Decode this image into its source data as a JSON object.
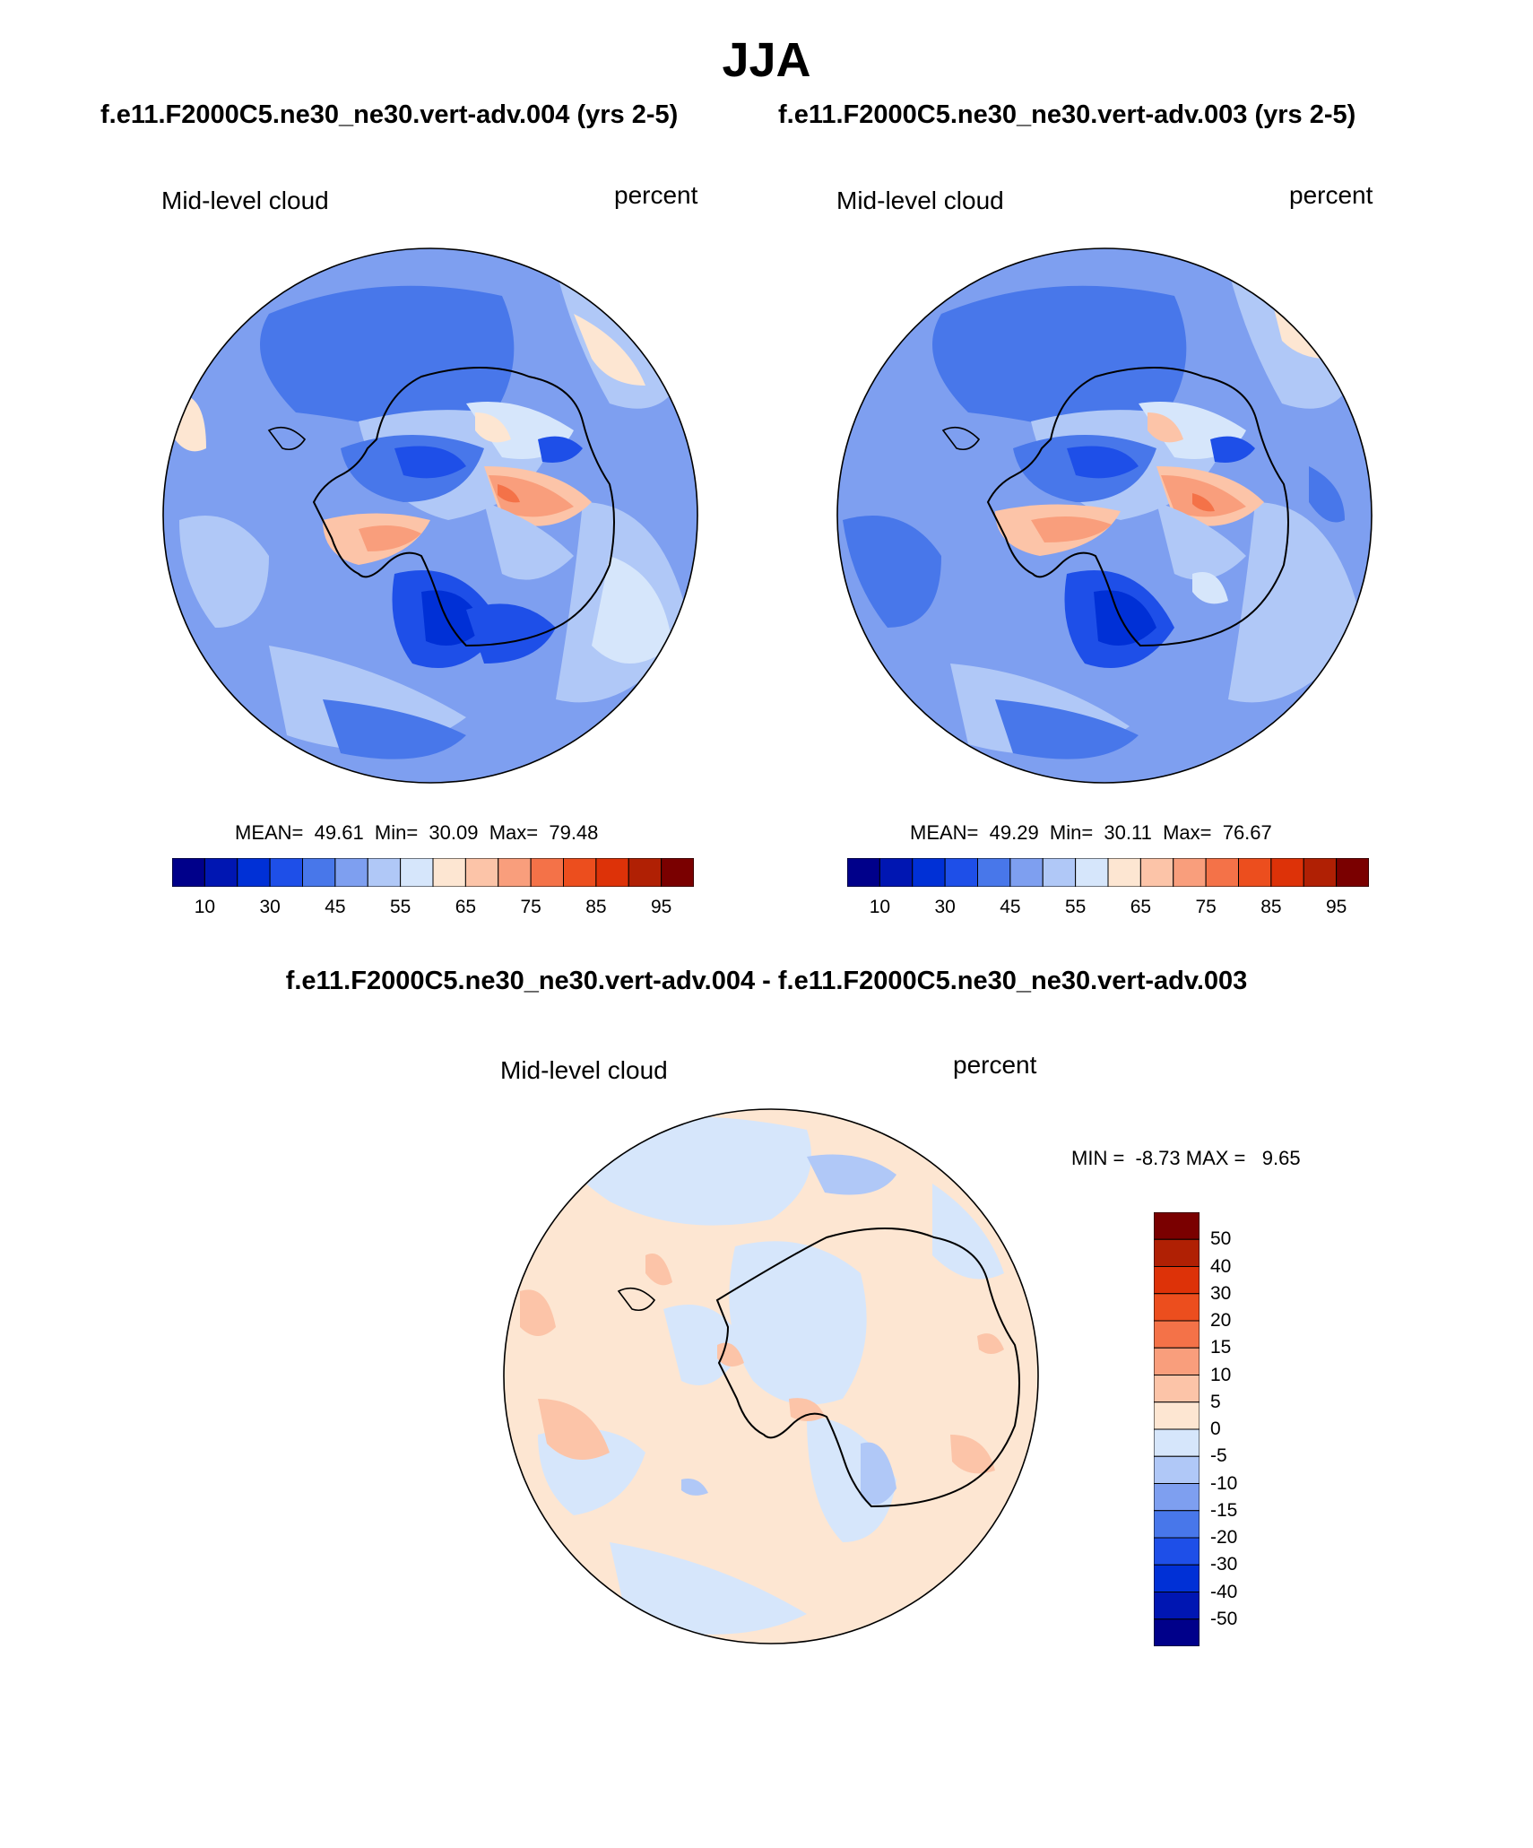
{
  "title": "JJA",
  "panels": [
    {
      "case_title": "f.e11.F2000C5.ne30_ne30.vert-adv.004 (yrs 2-5)",
      "left_label": "Mid-level cloud",
      "right_label": "percent",
      "stats": "MEAN=  49.61  Min=  30.09  Max=  79.48"
    },
    {
      "case_title": "f.e11.F2000C5.ne30_ne30.vert-adv.003 (yrs 2-5)",
      "left_label": "Mid-level cloud",
      "right_label": "percent",
      "stats": "MEAN=  49.29  Min=  30.11  Max=  76.67"
    }
  ],
  "diff": {
    "title": "f.e11.F2000C5.ne30_ne30.vert-adv.004 - f.e11.F2000C5.ne30_ne30.vert-adv.003",
    "left_label": "Mid-level cloud",
    "right_label": "percent",
    "stats": "MIN =  -8.73 MAX =   9.65"
  },
  "colorbar_abs": {
    "colors": [
      "#00008a",
      "#0016b2",
      "#0030d6",
      "#1e4fe8",
      "#4877ea",
      "#7e9ff0",
      "#b0c8f7",
      "#d6e6fb",
      "#fde6d2",
      "#fcc4a8",
      "#f99e7c",
      "#f47248",
      "#ec4e1e",
      "#dd3208",
      "#b02004",
      "#7a0000"
    ],
    "tick_labels": [
      "10",
      "30",
      "45",
      "55",
      "65",
      "75",
      "85",
      "95"
    ]
  },
  "colorbar_diff": {
    "colors": [
      "#7a0000",
      "#b02004",
      "#dd3208",
      "#ec4e1e",
      "#f47248",
      "#f99e7c",
      "#fcc4a8",
      "#fde6d2",
      "#d6e6fb",
      "#b0c8f7",
      "#7e9ff0",
      "#4877ea",
      "#1e4fe8",
      "#0030d6",
      "#0016b2",
      "#00008a"
    ],
    "tick_labels": [
      "50",
      "40",
      "30",
      "20",
      "15",
      "10",
      "5",
      "0",
      "-5",
      "-10",
      "-15",
      "-20",
      "-30",
      "-40",
      "-50"
    ]
  },
  "legend_abs": {
    "levels": [
      10,
      30,
      45,
      55,
      65,
      75,
      85,
      95
    ]
  },
  "legend_diff": {
    "levels": [
      50,
      40,
      30,
      20,
      15,
      10,
      5,
      0,
      -5,
      -10,
      -15,
      -20,
      -30,
      -40,
      -50
    ]
  }
}
